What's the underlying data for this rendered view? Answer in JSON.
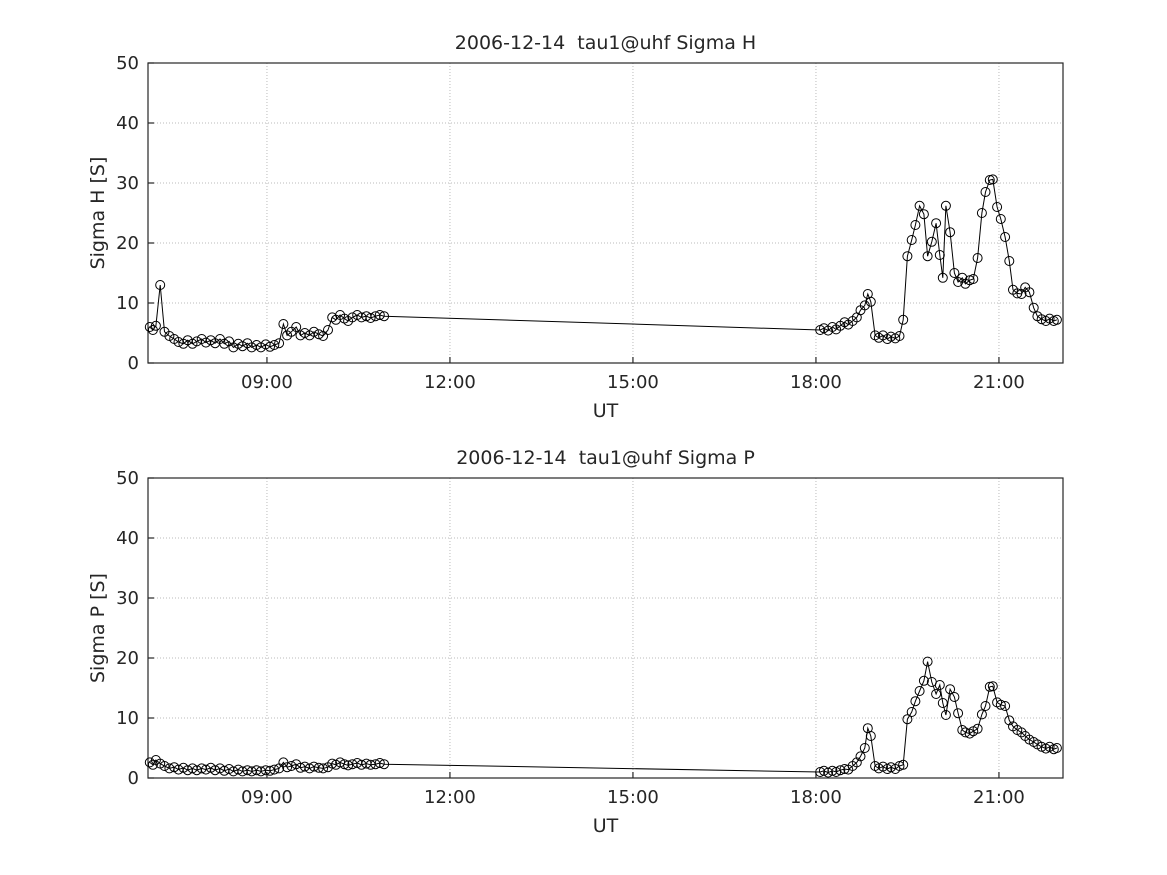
{
  "figure": {
    "background": "#ffffff"
  },
  "chart_data": [
    {
      "type": "line",
      "title": "2006-12-14  tau1@uhf Sigma H",
      "xlabel": "UT",
      "ylabel": "Sigma H [S]",
      "xlim": [
        7.05,
        22.05
      ],
      "ylim": [
        0,
        50
      ],
      "xticks": [
        9,
        12,
        15,
        18,
        21
      ],
      "xtick_labels": [
        "09:00",
        "12:00",
        "15:00",
        "18:00",
        "21:00"
      ],
      "yticks": [
        0,
        10,
        20,
        30,
        40,
        50
      ],
      "grid": true,
      "grid_color": "#bbbbbb",
      "axis_color": "#262626",
      "legend": "none",
      "series": [
        {
          "name": "Sigma H",
          "marker": "circle",
          "color": "#000000",
          "points": [
            [
              7.08,
              6.0
            ],
            [
              7.13,
              5.5
            ],
            [
              7.18,
              6.2
            ],
            [
              7.25,
              13.0
            ],
            [
              7.32,
              5.2
            ],
            [
              7.4,
              4.5
            ],
            [
              7.48,
              4.0
            ],
            [
              7.55,
              3.5
            ],
            [
              7.63,
              3.2
            ],
            [
              7.7,
              3.8
            ],
            [
              7.78,
              3.2
            ],
            [
              7.85,
              3.6
            ],
            [
              7.93,
              4.0
            ],
            [
              8.0,
              3.4
            ],
            [
              8.08,
              3.8
            ],
            [
              8.15,
              3.3
            ],
            [
              8.23,
              4.0
            ],
            [
              8.3,
              3.2
            ],
            [
              8.38,
              3.6
            ],
            [
              8.45,
              2.6
            ],
            [
              8.53,
              3.2
            ],
            [
              8.6,
              2.8
            ],
            [
              8.68,
              3.3
            ],
            [
              8.75,
              2.6
            ],
            [
              8.83,
              3.0
            ],
            [
              8.9,
              2.6
            ],
            [
              8.98,
              3.1
            ],
            [
              9.05,
              2.7
            ],
            [
              9.12,
              3.0
            ],
            [
              9.2,
              3.3
            ],
            [
              9.27,
              6.5
            ],
            [
              9.33,
              4.6
            ],
            [
              9.4,
              5.2
            ],
            [
              9.48,
              6.0
            ],
            [
              9.55,
              4.6
            ],
            [
              9.62,
              5.0
            ],
            [
              9.7,
              4.6
            ],
            [
              9.77,
              5.2
            ],
            [
              9.85,
              4.8
            ],
            [
              9.92,
              4.5
            ],
            [
              10.0,
              5.5
            ],
            [
              10.07,
              7.6
            ],
            [
              10.13,
              7.2
            ],
            [
              10.2,
              8.0
            ],
            [
              10.27,
              7.4
            ],
            [
              10.33,
              7.0
            ],
            [
              10.4,
              7.6
            ],
            [
              10.48,
              8.0
            ],
            [
              10.55,
              7.6
            ],
            [
              10.63,
              7.8
            ],
            [
              10.7,
              7.5
            ],
            [
              10.78,
              7.8
            ],
            [
              10.85,
              8.0
            ],
            [
              10.92,
              7.8
            ],
            [
              18.07,
              5.5
            ],
            [
              18.13,
              5.8
            ],
            [
              18.2,
              5.4
            ],
            [
              18.27,
              6.0
            ],
            [
              18.33,
              5.6
            ],
            [
              18.4,
              6.2
            ],
            [
              18.47,
              6.8
            ],
            [
              18.53,
              6.4
            ],
            [
              18.6,
              7.0
            ],
            [
              18.67,
              7.6
            ],
            [
              18.73,
              8.8
            ],
            [
              18.8,
              9.6
            ],
            [
              18.85,
              11.5
            ],
            [
              18.9,
              10.2
            ],
            [
              18.97,
              4.6
            ],
            [
              19.03,
              4.2
            ],
            [
              19.1,
              4.6
            ],
            [
              19.17,
              4.0
            ],
            [
              19.23,
              4.4
            ],
            [
              19.3,
              4.1
            ],
            [
              19.37,
              4.5
            ],
            [
              19.43,
              7.2
            ],
            [
              19.5,
              17.8
            ],
            [
              19.57,
              20.5
            ],
            [
              19.63,
              23.0
            ],
            [
              19.7,
              26.2
            ],
            [
              19.77,
              24.8
            ],
            [
              19.83,
              17.8
            ],
            [
              19.9,
              20.2
            ],
            [
              19.97,
              23.3
            ],
            [
              20.03,
              18.0
            ],
            [
              20.08,
              14.2
            ],
            [
              20.13,
              26.2
            ],
            [
              20.2,
              21.8
            ],
            [
              20.27,
              15.0
            ],
            [
              20.33,
              13.5
            ],
            [
              20.4,
              14.2
            ],
            [
              20.45,
              13.2
            ],
            [
              20.52,
              13.8
            ],
            [
              20.58,
              14.0
            ],
            [
              20.65,
              17.5
            ],
            [
              20.72,
              25.0
            ],
            [
              20.78,
              28.5
            ],
            [
              20.85,
              30.5
            ],
            [
              20.9,
              30.6
            ],
            [
              20.97,
              26.0
            ],
            [
              21.03,
              24.0
            ],
            [
              21.1,
              21.0
            ],
            [
              21.17,
              17.0
            ],
            [
              21.23,
              12.2
            ],
            [
              21.3,
              11.6
            ],
            [
              21.37,
              11.5
            ],
            [
              21.43,
              12.6
            ],
            [
              21.5,
              11.8
            ],
            [
              21.57,
              9.2
            ],
            [
              21.63,
              7.8
            ],
            [
              21.7,
              7.3
            ],
            [
              21.77,
              7.0
            ],
            [
              21.83,
              7.4
            ],
            [
              21.9,
              7.0
            ],
            [
              21.95,
              7.2
            ]
          ]
        }
      ]
    },
    {
      "type": "line",
      "title": "2006-12-14  tau1@uhf Sigma P",
      "xlabel": "UT",
      "ylabel": "Sigma P [S]",
      "xlim": [
        7.05,
        22.05
      ],
      "ylim": [
        0,
        50
      ],
      "xticks": [
        9,
        12,
        15,
        18,
        21
      ],
      "xtick_labels": [
        "09:00",
        "12:00",
        "15:00",
        "18:00",
        "21:00"
      ],
      "yticks": [
        0,
        10,
        20,
        30,
        40,
        50
      ],
      "grid": true,
      "grid_color": "#bbbbbb",
      "axis_color": "#262626",
      "legend": "none",
      "series": [
        {
          "name": "Sigma P",
          "marker": "circle",
          "color": "#000000",
          "points": [
            [
              7.08,
              2.6
            ],
            [
              7.13,
              2.2
            ],
            [
              7.18,
              3.0
            ],
            [
              7.25,
              2.4
            ],
            [
              7.32,
              2.0
            ],
            [
              7.4,
              1.6
            ],
            [
              7.48,
              1.8
            ],
            [
              7.55,
              1.4
            ],
            [
              7.63,
              1.7
            ],
            [
              7.7,
              1.3
            ],
            [
              7.78,
              1.6
            ],
            [
              7.85,
              1.3
            ],
            [
              7.93,
              1.6
            ],
            [
              8.0,
              1.4
            ],
            [
              8.08,
              1.7
            ],
            [
              8.15,
              1.3
            ],
            [
              8.23,
              1.6
            ],
            [
              8.3,
              1.2
            ],
            [
              8.38,
              1.5
            ],
            [
              8.45,
              1.1
            ],
            [
              8.53,
              1.4
            ],
            [
              8.6,
              1.1
            ],
            [
              8.68,
              1.3
            ],
            [
              8.75,
              1.1
            ],
            [
              8.83,
              1.3
            ],
            [
              8.9,
              1.1
            ],
            [
              8.98,
              1.3
            ],
            [
              9.05,
              1.2
            ],
            [
              9.12,
              1.4
            ],
            [
              9.2,
              1.6
            ],
            [
              9.27,
              2.6
            ],
            [
              9.33,
              1.8
            ],
            [
              9.4,
              2.0
            ],
            [
              9.48,
              2.3
            ],
            [
              9.55,
              1.7
            ],
            [
              9.62,
              1.9
            ],
            [
              9.7,
              1.6
            ],
            [
              9.77,
              1.9
            ],
            [
              9.85,
              1.7
            ],
            [
              9.92,
              1.6
            ],
            [
              10.0,
              1.8
            ],
            [
              10.07,
              2.4
            ],
            [
              10.13,
              2.2
            ],
            [
              10.2,
              2.6
            ],
            [
              10.27,
              2.3
            ],
            [
              10.33,
              2.1
            ],
            [
              10.4,
              2.3
            ],
            [
              10.48,
              2.5
            ],
            [
              10.55,
              2.2
            ],
            [
              10.63,
              2.4
            ],
            [
              10.7,
              2.2
            ],
            [
              10.78,
              2.3
            ],
            [
              10.85,
              2.5
            ],
            [
              10.92,
              2.3
            ],
            [
              18.07,
              1.0
            ],
            [
              18.13,
              1.2
            ],
            [
              18.2,
              0.9
            ],
            [
              18.27,
              1.2
            ],
            [
              18.33,
              1.0
            ],
            [
              18.4,
              1.3
            ],
            [
              18.47,
              1.5
            ],
            [
              18.53,
              1.4
            ],
            [
              18.6,
              2.0
            ],
            [
              18.67,
              2.6
            ],
            [
              18.73,
              3.6
            ],
            [
              18.8,
              5.0
            ],
            [
              18.85,
              8.3
            ],
            [
              18.9,
              7.0
            ],
            [
              18.97,
              2.0
            ],
            [
              19.03,
              1.6
            ],
            [
              19.1,
              1.9
            ],
            [
              19.17,
              1.5
            ],
            [
              19.23,
              1.8
            ],
            [
              19.3,
              1.5
            ],
            [
              19.37,
              2.0
            ],
            [
              19.43,
              2.2
            ],
            [
              19.5,
              9.8
            ],
            [
              19.57,
              11.0
            ],
            [
              19.63,
              12.8
            ],
            [
              19.7,
              14.5
            ],
            [
              19.77,
              16.2
            ],
            [
              19.83,
              19.4
            ],
            [
              19.9,
              16.0
            ],
            [
              19.97,
              14.0
            ],
            [
              20.03,
              15.5
            ],
            [
              20.08,
              12.5
            ],
            [
              20.13,
              10.5
            ],
            [
              20.2,
              14.8
            ],
            [
              20.27,
              13.5
            ],
            [
              20.33,
              10.8
            ],
            [
              20.4,
              8.0
            ],
            [
              20.45,
              7.6
            ],
            [
              20.52,
              7.4
            ],
            [
              20.58,
              7.8
            ],
            [
              20.65,
              8.2
            ],
            [
              20.72,
              10.6
            ],
            [
              20.78,
              12.0
            ],
            [
              20.85,
              15.2
            ],
            [
              20.9,
              15.3
            ],
            [
              20.97,
              12.6
            ],
            [
              21.03,
              12.2
            ],
            [
              21.1,
              12.0
            ],
            [
              21.17,
              9.6
            ],
            [
              21.23,
              8.6
            ],
            [
              21.3,
              8.0
            ],
            [
              21.37,
              7.6
            ],
            [
              21.43,
              7.0
            ],
            [
              21.5,
              6.4
            ],
            [
              21.57,
              6.0
            ],
            [
              21.63,
              5.6
            ],
            [
              21.7,
              5.2
            ],
            [
              21.77,
              4.9
            ],
            [
              21.83,
              5.2
            ],
            [
              21.9,
              4.8
            ],
            [
              21.95,
              5.0
            ]
          ]
        }
      ]
    }
  ]
}
